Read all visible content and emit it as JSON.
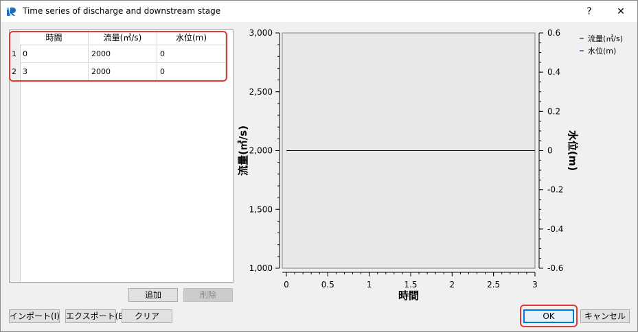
{
  "window": {
    "title": "Time series of discharge and downstream stage",
    "help_label": "?",
    "close_label": "✕"
  },
  "table": {
    "headers": [
      "時間",
      "流量(㎥/s)",
      "水位(m)"
    ],
    "rows": [
      {
        "num": "1",
        "cells": [
          "0",
          "2000",
          "0"
        ]
      },
      {
        "num": "2",
        "cells": [
          "3",
          "2000",
          "0"
        ]
      }
    ]
  },
  "buttons": {
    "add": "追加",
    "delete": "削除",
    "import": "インポート(I)",
    "export": "エクスポート(E)",
    "clear": "クリア",
    "ok": "OK",
    "cancel": "キャンセル"
  },
  "chart_data": {
    "type": "line",
    "xlabel": "時間",
    "ylabel": "流量(㎥/s)",
    "y2label": "水位(m)",
    "x": [
      0,
      3
    ],
    "xlim": [
      0,
      3
    ],
    "xticks": [
      "0",
      "0.5",
      "1",
      "1.5",
      "2",
      "2.5",
      "3"
    ],
    "ylim": [
      1000,
      3000
    ],
    "yticks": [
      "1,000",
      "1,500",
      "2,000",
      "2,500",
      "3,000"
    ],
    "y2lim": [
      -0.6,
      0.6
    ],
    "y2ticks": [
      "-0.6",
      "-0.4",
      "-0.2",
      "0",
      "0.2",
      "0.4",
      "0.6"
    ],
    "series": [
      {
        "name": "流量(㎥/s)",
        "axis": "left",
        "values": [
          2000,
          2000
        ],
        "color": "#000000"
      },
      {
        "name": "水位(m)",
        "axis": "right",
        "values": [
          0,
          0
        ],
        "color": "#00008b"
      }
    ],
    "legend": "top-right",
    "grid": false
  }
}
